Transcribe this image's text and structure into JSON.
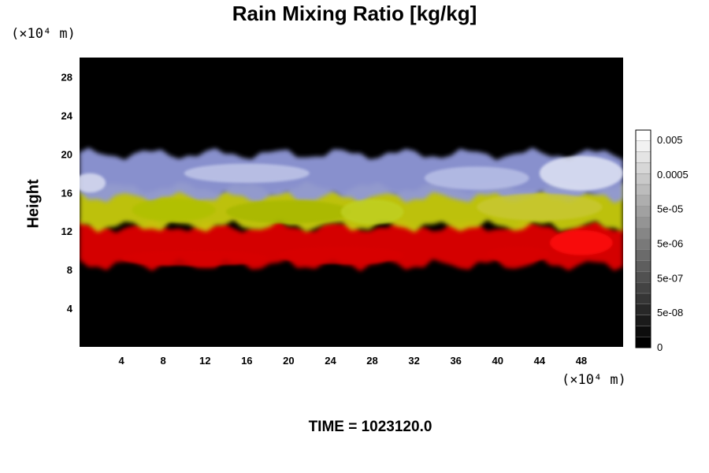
{
  "chart_data": {
    "type": "heatmap",
    "title": "Rain Mixing Ratio [kg/kg]",
    "ylabel": "Height",
    "xlabel": "",
    "x_unit_label": "(×10⁴ m)",
    "y_unit_label": "(×10⁴ m)",
    "xlim": [
      0,
      52
    ],
    "ylim": [
      0,
      30
    ],
    "x_ticks": [
      4,
      8,
      12,
      16,
      20,
      24,
      28,
      32,
      36,
      40,
      44,
      48
    ],
    "y_ticks": [
      4,
      8,
      12,
      16,
      20,
      24,
      28
    ],
    "background_color": "#000000",
    "layers": [
      {
        "name": "red band",
        "color": "#e00000",
        "y_range": [
          8.5,
          12.5
        ]
      },
      {
        "name": "yellow band",
        "color": "#c8cc10",
        "y_range": [
          12.5,
          16.5
        ]
      },
      {
        "name": "blue-white band",
        "color": "#9098d8",
        "y_range": [
          15.5,
          20
        ]
      }
    ],
    "colorbar": {
      "scale": "log",
      "labels": [
        "0.005",
        "0.0005",
        "5e-05",
        "5e-06",
        "5e-07",
        "5e-08",
        "0"
      ]
    },
    "footer": "TIME = 1023120.0"
  }
}
